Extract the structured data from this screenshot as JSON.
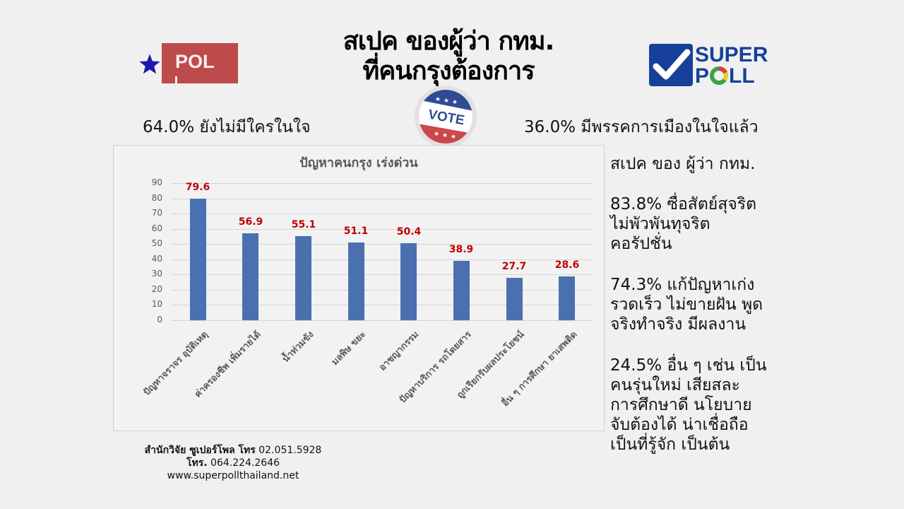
{
  "header": {
    "title_line1": "สเปค ของผู้ว่า กทม.",
    "title_line2": "ที่คนกรุงต้องการ"
  },
  "logos": {
    "left": {
      "icon": "star-icon",
      "text": "POL",
      "box_color": "#bd4b4b",
      "star_color": "#1a1aa8"
    },
    "right": {
      "icon": "checkmark-icon",
      "line1": "SUPER",
      "line2_p": "P",
      "line2_rest": "LL",
      "color": "#17409b"
    },
    "badge": {
      "icon": "vote-badge-icon",
      "text": "VOTE"
    }
  },
  "summary": {
    "left": "64.0% ยังไม่มีใครในใจ",
    "right": "36.0% มีพรรคการเมืองในใจแล้ว"
  },
  "chart_data": {
    "type": "bar",
    "title": "ปัญหาคนกรุง เร่งด่วน",
    "xlabel": "",
    "ylabel": "",
    "ylim": [
      0,
      90
    ],
    "yticks": [
      0,
      10,
      20,
      30,
      40,
      50,
      60,
      70,
      80,
      90
    ],
    "grid": true,
    "legend": "none",
    "bar_color": "#4a70b0",
    "label_color": "#c00000",
    "categories": [
      "ปัญหาจราจร อุบัติเหตุ",
      "ค่าครองชีพ เพิ่มรายได้",
      "น้ำท่วมขัง",
      "มลพิษ ขยะ",
      "อาชญากรรม",
      "ปัญหาบริการ รถโดยสาร",
      "ถูกเรียกรับผลประโยชน์",
      "อื่น ๆ การศึกษา ยาเสพติด"
    ],
    "values": [
      79.6,
      56.9,
      55.1,
      51.1,
      50.4,
      38.9,
      27.7,
      28.6
    ],
    "value_labels": [
      "79.6",
      "56.9",
      "55.1",
      "51.1",
      "50.4",
      "38.9",
      "27.7",
      "28.6"
    ]
  },
  "specs": {
    "heading": "สเปค ของ ผู้ว่า กทม.",
    "items": [
      {
        "lines": [
          "83.8% ซื่อสัตย์สุจริต",
          "ไม่พัวพันทุจริต",
          "คอรัปชั่น"
        ]
      },
      {
        "lines": [
          "74.3% แก้ปัญหาเก่ง",
          "รวดเร็ว ไม่ขายฝัน พูด",
          "จริงทำจริง มีผลงาน"
        ]
      },
      {
        "lines": [
          "24.5% อื่น ๆ เช่น เป็น",
          "คนรุ่นใหม่ เสียสละ",
          "การศึกษาดี นโยบาย",
          "จับต้องได้ น่าเชื่อถือ",
          "เป็นที่รู้จัก เป็นต้น"
        ]
      }
    ]
  },
  "footer": {
    "line1_label": "สำนักวิจัย ซูเปอร์โพล โทร",
    "line1_phone": "02.051.5928",
    "line2_label": "โทร.",
    "line2_phone": "064.224.2646",
    "website": "www.superpollthailand.net"
  }
}
